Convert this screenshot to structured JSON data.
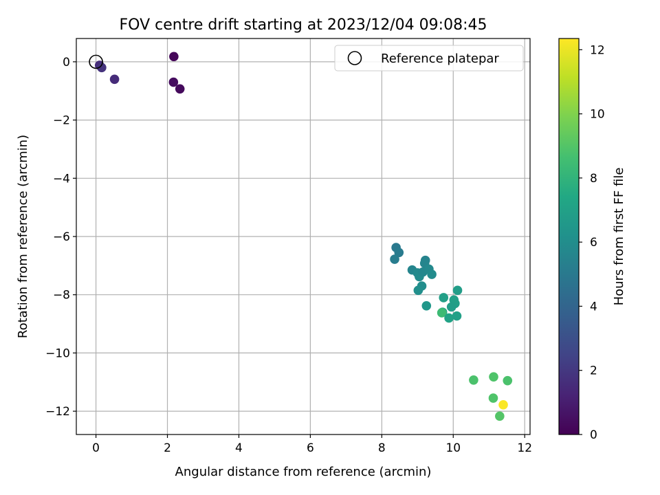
{
  "chart_data": {
    "type": "scatter",
    "title": "FOV centre drift starting at 2023/12/04 09:08:45",
    "xlabel": "Angular distance from reference (arcmin)",
    "ylabel": "Rotation from reference (arcmin)",
    "xlim": [
      -0.55,
      12.15
    ],
    "ylim": [
      -12.8,
      0.8
    ],
    "xticks": [
      0,
      2,
      4,
      6,
      8,
      10,
      12
    ],
    "yticks": [
      0,
      -2,
      -4,
      -6,
      -8,
      -10,
      -12
    ],
    "grid": true,
    "legend": {
      "position": "top-right",
      "entries": [
        "Reference platepar"
      ]
    },
    "reference_point": {
      "x": 0,
      "y": 0
    },
    "colorbar": {
      "label": "Hours from first FF file",
      "colormap": "viridis",
      "range": [
        0,
        12.35
      ],
      "ticks": [
        0,
        2,
        4,
        6,
        8,
        10,
        12
      ]
    },
    "points": [
      {
        "x": 0.1,
        "y": -0.12,
        "c": 1.6
      },
      {
        "x": 0.16,
        "y": -0.2,
        "c": 1.8
      },
      {
        "x": 0.52,
        "y": -0.6,
        "c": 1.5
      },
      {
        "x": 2.18,
        "y": 0.18,
        "c": 0.2
      },
      {
        "x": 2.17,
        "y": -0.7,
        "c": 0.4
      },
      {
        "x": 2.35,
        "y": -0.93,
        "c": 0.3
      },
      {
        "x": 8.4,
        "y": -6.38,
        "c": 5.0
      },
      {
        "x": 8.48,
        "y": -6.55,
        "c": 5.1
      },
      {
        "x": 8.36,
        "y": -6.78,
        "c": 5.2
      },
      {
        "x": 8.85,
        "y": -7.15,
        "c": 5.6
      },
      {
        "x": 9.22,
        "y": -6.82,
        "c": 5.5
      },
      {
        "x": 9.2,
        "y": -6.92,
        "c": 5.6
      },
      {
        "x": 9.0,
        "y": -7.25,
        "c": 5.8
      },
      {
        "x": 9.05,
        "y": -7.38,
        "c": 5.9
      },
      {
        "x": 9.15,
        "y": -7.22,
        "c": 5.7
      },
      {
        "x": 9.32,
        "y": -7.12,
        "c": 5.8
      },
      {
        "x": 9.4,
        "y": -7.3,
        "c": 5.9
      },
      {
        "x": 9.12,
        "y": -7.7,
        "c": 6.0
      },
      {
        "x": 9.02,
        "y": -7.85,
        "c": 6.1
      },
      {
        "x": 9.25,
        "y": -8.38,
        "c": 6.5
      },
      {
        "x": 10.12,
        "y": -7.85,
        "c": 6.8
      },
      {
        "x": 9.73,
        "y": -8.1,
        "c": 6.9
      },
      {
        "x": 10.02,
        "y": -8.18,
        "c": 7.0
      },
      {
        "x": 10.05,
        "y": -8.3,
        "c": 6.9
      },
      {
        "x": 9.95,
        "y": -8.42,
        "c": 6.8
      },
      {
        "x": 9.7,
        "y": -8.6,
        "c": 7.2
      },
      {
        "x": 9.68,
        "y": -8.62,
        "c": 8.4
      },
      {
        "x": 9.88,
        "y": -8.8,
        "c": 7.1
      },
      {
        "x": 10.1,
        "y": -8.73,
        "c": 7.0
      },
      {
        "x": 10.57,
        "y": -10.93,
        "c": 8.8
      },
      {
        "x": 11.13,
        "y": -10.82,
        "c": 8.9
      },
      {
        "x": 11.52,
        "y": -10.95,
        "c": 8.8
      },
      {
        "x": 11.12,
        "y": -11.55,
        "c": 8.9
      },
      {
        "x": 11.3,
        "y": -12.17,
        "c": 9.0
      },
      {
        "x": 11.4,
        "y": -11.78,
        "c": 12.3
      }
    ]
  }
}
